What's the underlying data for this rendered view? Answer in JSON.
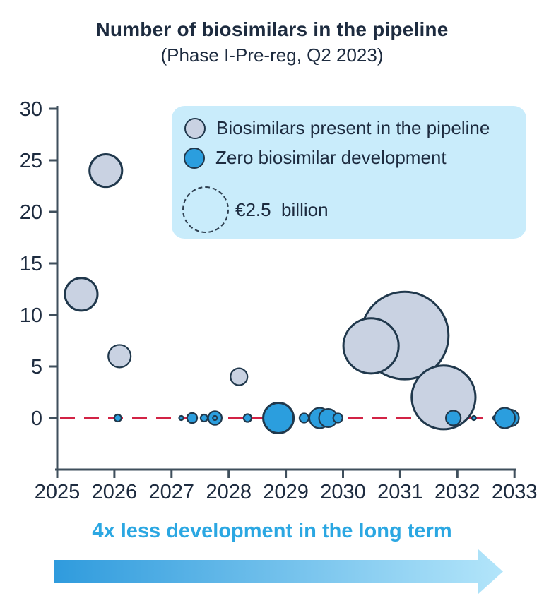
{
  "header": {
    "title": "Number of biosimilars in the pipeline",
    "subtitle": "(Phase I-Pre-reg, Q2 2023)"
  },
  "legend": {
    "items": [
      {
        "label": "Biosimilars present in the pipeline",
        "color": "#c9d2e2"
      },
      {
        "label": "Zero biosimilar development",
        "color": "#2b9ede"
      }
    ],
    "size_reference": {
      "label": "€2.5  billion",
      "value_eur_bn": 2.5
    }
  },
  "chart_data": {
    "type": "scatter",
    "subtype": "bubble",
    "title": "Number of biosimilars in the pipeline (Phase I-Pre-reg, Q2 2023)",
    "xlabel": "",
    "ylabel": "Number of biosimilars in the pipeline",
    "x_ticks": [
      2025,
      2026,
      2027,
      2028,
      2029,
      2030,
      2031,
      2032,
      2033
    ],
    "y_ticks": [
      0,
      5,
      10,
      15,
      20,
      25,
      30
    ],
    "xlim": [
      2025,
      2033
    ],
    "ylim": [
      0,
      30
    ],
    "grid": false,
    "legend_position": "top-right",
    "zero_line": {
      "y": 0,
      "style": "dashed",
      "color": "#d22345"
    },
    "bubble_scale": {
      "reference_value_eur_bn": 2.5,
      "reference_radius_px": 34,
      "note": "bubble area encodes market value in € billion"
    },
    "series": [
      {
        "name": "Biosimilars present in the pipeline",
        "color": "#c9d2e2",
        "marker_name": "bubble-pipeline",
        "points": [
          {
            "x": 2025.42,
            "y": 12,
            "value_eur_bn": 1.15
          },
          {
            "x": 2025.85,
            "y": 24,
            "value_eur_bn": 1.15
          },
          {
            "x": 2026.09,
            "y": 6,
            "value_eur_bn": 0.55
          },
          {
            "x": 2028.18,
            "y": 4,
            "value_eur_bn": 0.31
          },
          {
            "x": 2031.08,
            "y": 8,
            "value_eur_bn": 8.3
          },
          {
            "x": 2030.49,
            "y": 7,
            "value_eur_bn": 3.3
          },
          {
            "x": 2031.76,
            "y": 2,
            "value_eur_bn": 4.4
          }
        ]
      },
      {
        "name": "Zero biosimilar development",
        "color": "#2b9ede",
        "marker_name": "bubble-zero-dev",
        "points": [
          {
            "x": 2026.06,
            "y": 0,
            "value_eur_bn": 0.054
          },
          {
            "x": 2027.17,
            "y": 0,
            "value_eur_bn": 0.02
          },
          {
            "x": 2027.36,
            "y": 0,
            "value_eur_bn": 0.11
          },
          {
            "x": 2027.57,
            "y": 0,
            "value_eur_bn": 0.054
          },
          {
            "x": 2027.76,
            "y": 0,
            "value_eur_bn": 0.2
          },
          {
            "x": 2027.76,
            "y": 0,
            "value_eur_bn": 0.02
          },
          {
            "x": 2028.33,
            "y": 0,
            "value_eur_bn": 0.067
          },
          {
            "x": 2028.87,
            "y": 0,
            "value_eur_bn": 1.0
          },
          {
            "x": 2029.32,
            "y": 0,
            "value_eur_bn": 0.093
          },
          {
            "x": 2029.59,
            "y": 0,
            "value_eur_bn": 0.45
          },
          {
            "x": 2029.74,
            "y": 0,
            "value_eur_bn": 0.36
          },
          {
            "x": 2029.91,
            "y": 0,
            "value_eur_bn": 0.093
          },
          {
            "x": 2031.93,
            "y": 0,
            "value_eur_bn": 0.24
          },
          {
            "x": 2032.29,
            "y": 0,
            "value_eur_bn": 0.02
          },
          {
            "x": 2032.66,
            "y": 0,
            "value_eur_bn": 0.02
          },
          {
            "x": 2032.93,
            "y": 0,
            "value_eur_bn": 0.31
          },
          {
            "x": 2032.83,
            "y": 0,
            "value_eur_bn": 0.45
          }
        ]
      }
    ]
  },
  "annotation": {
    "text": "4x less development in the long term",
    "color": "#2ba7e2"
  },
  "colors": {
    "title_text": "#1d2b3f",
    "axis_text": "#1d2b3f",
    "axis_line": "#3f4f5c",
    "gray_bubble_fill": "#c9d2e2",
    "blue_bubble_fill": "#2b9ede",
    "bubble_stroke": "#20384c",
    "legend_background": "#c9ecfb",
    "zero_line_red": "#d22345",
    "annotation_blue": "#2ba7e2",
    "arrow_gradient_start": "#2f9bdd",
    "arrow_gradient_end": "#b3e5fa"
  }
}
